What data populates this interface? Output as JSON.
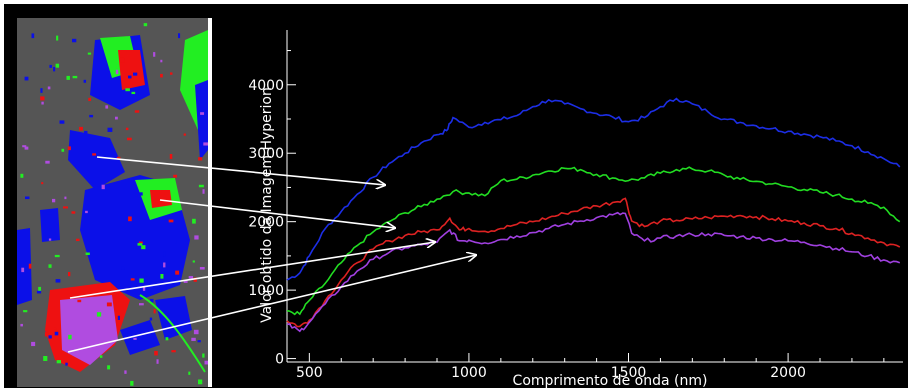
{
  "chart_data": {
    "type": "line",
    "title": "",
    "xlabel": "Comprimento de onda (nm)",
    "ylabel": "Valor obtido da Imagem Hyperion",
    "xlim": [
      430,
      2360
    ],
    "ylim": [
      -50,
      4800
    ],
    "x_ticks": [
      500,
      1000,
      1500,
      2000
    ],
    "y_ticks": [
      0,
      1000,
      2000,
      3000,
      4000
    ],
    "grid": false,
    "legend": "none",
    "background": "#000000",
    "series": [
      {
        "color": "#1c2ee6",
        "x": [
          430,
          470,
          500,
          550,
          600,
          650,
          700,
          750,
          800,
          850,
          900,
          930,
          950,
          1000,
          1050,
          1100,
          1150,
          1200,
          1250,
          1300,
          1350,
          1400,
          1450,
          1500,
          1550,
          1600,
          1650,
          1700,
          1750,
          1800,
          1850,
          1900,
          1950,
          2000,
          2050,
          2100,
          2150,
          2200,
          2250,
          2300,
          2350
        ],
        "y": [
          1150,
          1250,
          1500,
          1900,
          2150,
          2400,
          2650,
          2850,
          3000,
          3150,
          3270,
          3330,
          3520,
          3380,
          3450,
          3490,
          3550,
          3680,
          3780,
          3720,
          3650,
          3580,
          3530,
          3460,
          3520,
          3680,
          3800,
          3720,
          3600,
          3500,
          3450,
          3400,
          3360,
          3320,
          3280,
          3240,
          3180,
          3110,
          3020,
          2920,
          2800
        ]
      },
      {
        "color": "#22dd22",
        "x": [
          430,
          470,
          500,
          550,
          600,
          650,
          700,
          750,
          800,
          850,
          900,
          950,
          1000,
          1050,
          1100,
          1150,
          1200,
          1250,
          1300,
          1350,
          1400,
          1450,
          1500,
          1550,
          1600,
          1650,
          1700,
          1750,
          1800,
          1850,
          1900,
          1950,
          2000,
          2050,
          2100,
          2150,
          2200,
          2250,
          2300,
          2350
        ],
        "y": [
          700,
          650,
          850,
          1100,
          1400,
          1650,
          1850,
          2000,
          2130,
          2220,
          2330,
          2440,
          2420,
          2380,
          2600,
          2620,
          2680,
          2740,
          2780,
          2760,
          2690,
          2640,
          2600,
          2640,
          2710,
          2760,
          2770,
          2740,
          2680,
          2620,
          2590,
          2550,
          2510,
          2470,
          2430,
          2390,
          2330,
          2270,
          2210,
          2000
        ]
      },
      {
        "color": "#dd2222",
        "x": [
          430,
          470,
          500,
          550,
          600,
          650,
          700,
          750,
          800,
          850,
          900,
          940,
          970,
          1000,
          1050,
          1100,
          1150,
          1200,
          1250,
          1300,
          1350,
          1400,
          1450,
          1490,
          1510,
          1550,
          1600,
          1650,
          1700,
          1750,
          1800,
          1850,
          1900,
          1950,
          2000,
          2050,
          2100,
          2150,
          2200,
          2250,
          2300,
          2350
        ],
        "y": [
          550,
          470,
          560,
          850,
          1150,
          1400,
          1600,
          1720,
          1800,
          1850,
          1880,
          2050,
          1880,
          1900,
          1860,
          1900,
          1960,
          2000,
          2060,
          2120,
          2180,
          2230,
          2280,
          2340,
          2010,
          1930,
          2010,
          2020,
          2040,
          2060,
          2080,
          2090,
          2070,
          2040,
          2010,
          1980,
          1940,
          1900,
          1830,
          1760,
          1690,
          1630
        ]
      },
      {
        "color": "#a040e0",
        "x": [
          430,
          470,
          500,
          550,
          600,
          650,
          700,
          750,
          800,
          850,
          900,
          940,
          970,
          1000,
          1050,
          1100,
          1150,
          1200,
          1250,
          1300,
          1350,
          1400,
          1450,
          1490,
          1510,
          1550,
          1600,
          1650,
          1700,
          1750,
          1800,
          1850,
          1900,
          1950,
          2000,
          2050,
          2100,
          2150,
          2200,
          2250,
          2300,
          2350
        ],
        "y": [
          500,
          400,
          530,
          800,
          1050,
          1280,
          1450,
          1550,
          1620,
          1660,
          1700,
          1880,
          1720,
          1730,
          1690,
          1740,
          1790,
          1840,
          1900,
          1960,
          2010,
          2060,
          2100,
          2120,
          1830,
          1720,
          1760,
          1790,
          1810,
          1820,
          1800,
          1780,
          1760,
          1740,
          1720,
          1700,
          1660,
          1610,
          1560,
          1500,
          1440,
          1400
        ]
      }
    ]
  },
  "inset": {
    "background": "#555555",
    "colors": {
      "blue": "#0b10e8",
      "red": "#ee1111",
      "green": "#22ee22",
      "magenta": "#b04ce0"
    }
  }
}
